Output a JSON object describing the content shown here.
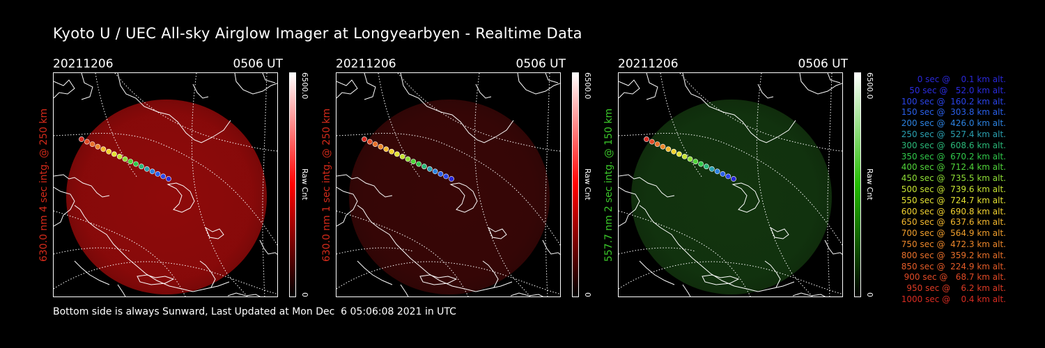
{
  "title": "Kyoto U / UEC All-sky Airglow Imager at Longyearbyen - Realtime Data",
  "footer": "Bottom side is always Sunward, Last Updated at Mon Dec  6 05:06:08 2021 in UTC",
  "panels": [
    {
      "date": "20211206",
      "time": "0506 UT",
      "ylabel": "630.0 nm 4 sec intg. @ 250 km",
      "label_color": "#d42a1a",
      "cb_max": "6500.0",
      "cb_min": "0",
      "cb_unit": "Raw Cnt",
      "cb_colors": [
        "#000000",
        "#ff0000",
        "#ffffff"
      ],
      "glow": "#9e0b0b",
      "glow_opacity": 0.9
    },
    {
      "date": "20211206",
      "time": "0506 UT",
      "ylabel": "630.0 nm 1 sec intg. @ 250 km",
      "label_color": "#d42a1a",
      "cb_max": "6500.0",
      "cb_min": "0",
      "cb_unit": "Raw Cnt",
      "cb_colors": [
        "#000000",
        "#ff0000",
        "#ffffff"
      ],
      "glow": "#3e0707",
      "glow_opacity": 0.9
    },
    {
      "date": "20211206",
      "time": "0506 UT",
      "ylabel": "557.7 nm 2 sec intg. @ 150 km",
      "label_color": "#3bc82a",
      "cb_max": "6500.0",
      "cb_min": "0",
      "cb_unit": "Raw Cnt",
      "cb_colors": [
        "#000000",
        "#22bb00",
        "#ffffff"
      ],
      "glow": "#143a10",
      "glow_opacity": 0.9
    }
  ],
  "legend": [
    {
      "text": "0 sec @    0.1 km alt.",
      "color": "#2a28d8"
    },
    {
      "text": "50 sec @   52.0 km alt.",
      "color": "#2a2ce0"
    },
    {
      "text": "100 sec @  160.2 km alt.",
      "color": "#2a44e8"
    },
    {
      "text": "150 sec @  303.8 km alt.",
      "color": "#2a60ea"
    },
    {
      "text": "200 sec @  426.0 km alt.",
      "color": "#2c82e0"
    },
    {
      "text": "250 sec @  527.4 km alt.",
      "color": "#2aa0b0"
    },
    {
      "text": "300 sec @  608.6 km alt.",
      "color": "#2ab878"
    },
    {
      "text": "350 sec @  670.2 km alt.",
      "color": "#30c84a"
    },
    {
      "text": "400 sec @  712.4 km alt.",
      "color": "#50d43a"
    },
    {
      "text": "450 sec @  735.5 km alt.",
      "color": "#8ede36"
    },
    {
      "text": "500 sec @  739.6 km alt.",
      "color": "#c6e232"
    },
    {
      "text": "550 sec @  724.7 km alt.",
      "color": "#e4e232"
    },
    {
      "text": "600 sec @  690.8 km alt.",
      "color": "#f2d230"
    },
    {
      "text": "650 sec @  637.6 km alt.",
      "color": "#f4b82e"
    },
    {
      "text": "700 sec @  564.9 km alt.",
      "color": "#f09e2c"
    },
    {
      "text": "750 sec @  472.3 km alt.",
      "color": "#ec862a"
    },
    {
      "text": "800 sec @  359.2 km alt.",
      "color": "#e8702a"
    },
    {
      "text": "850 sec @  224.9 km alt.",
      "color": "#e45c28"
    },
    {
      "text": "900 sec @   68.7 km alt.",
      "color": "#e04a26"
    },
    {
      "text": "950 sec @    6.2 km alt.",
      "color": "#dc3a24"
    },
    {
      "text": "1000 sec @    0.4 km alt.",
      "color": "#d82c22"
    }
  ],
  "track_colors": [
    "#d82c22",
    "#e04a26",
    "#e8702a",
    "#ec862a",
    "#f4b82e",
    "#f2d230",
    "#e4e232",
    "#c6e232",
    "#8ede36",
    "#50d43a",
    "#30c84a",
    "#2ab878",
    "#2aa0b0",
    "#2c82e0",
    "#2a60ea",
    "#2a44e8",
    "#2a28d8"
  ]
}
